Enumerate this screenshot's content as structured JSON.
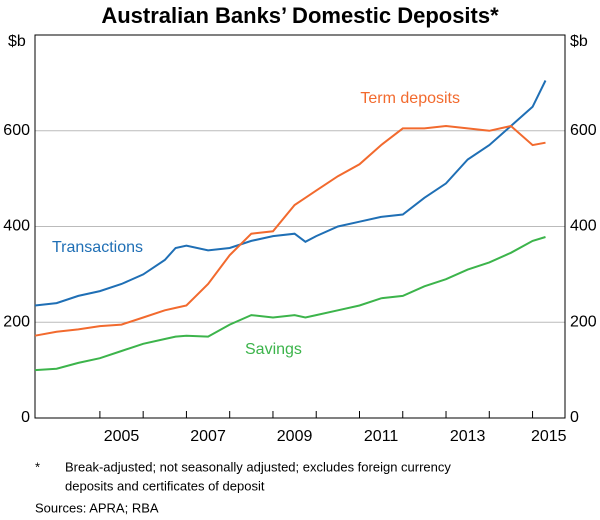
{
  "chart_data": {
    "type": "line",
    "title": "Australian Banks’ Domestic Deposits*",
    "y_label": "$b",
    "x": [
      2003.5,
      2004,
      2004.5,
      2005,
      2005.5,
      2006,
      2006.5,
      2006.75,
      2007,
      2007.5,
      2008,
      2008.5,
      2009,
      2009.5,
      2009.75,
      2010,
      2010.5,
      2011,
      2011.5,
      2012,
      2012.5,
      2013,
      2013.5,
      2014,
      2014.5,
      2015,
      2015.3
    ],
    "series": [
      {
        "name": "Transactions",
        "color": "#1f6fb5",
        "values": [
          235,
          240,
          255,
          265,
          280,
          300,
          330,
          355,
          360,
          350,
          355,
          370,
          380,
          385,
          368,
          380,
          400,
          410,
          420,
          425,
          460,
          490,
          540,
          570,
          610,
          650,
          705
        ]
      },
      {
        "name": "Term deposits",
        "color": "#f26a2e",
        "values": [
          172,
          180,
          185,
          192,
          195,
          210,
          225,
          230,
          235,
          280,
          340,
          385,
          390,
          445,
          460,
          475,
          505,
          530,
          570,
          605,
          605,
          610,
          605,
          600,
          610,
          570,
          575
        ]
      },
      {
        "name": "Savings",
        "color": "#3cb44b",
        "values": [
          100,
          103,
          115,
          125,
          140,
          155,
          165,
          170,
          172,
          170,
          195,
          215,
          210,
          215,
          210,
          215,
          225,
          235,
          250,
          255,
          275,
          290,
          310,
          325,
          345,
          370,
          378
        ]
      }
    ],
    "xlim": [
      2003.5,
      2015.75
    ],
    "xticks": [
      2005,
      2007,
      2009,
      2011,
      2013,
      2015
    ],
    "ylim": [
      0,
      800
    ],
    "yticks": [
      0,
      200,
      400,
      600
    ],
    "grid": true,
    "footnote_marker": "*",
    "footnote": [
      "Break-adjusted; not seasonally adjusted; excludes foreign currency",
      "deposits and certificates of deposit"
    ],
    "sources": "Sources:   APRA; RBA"
  }
}
